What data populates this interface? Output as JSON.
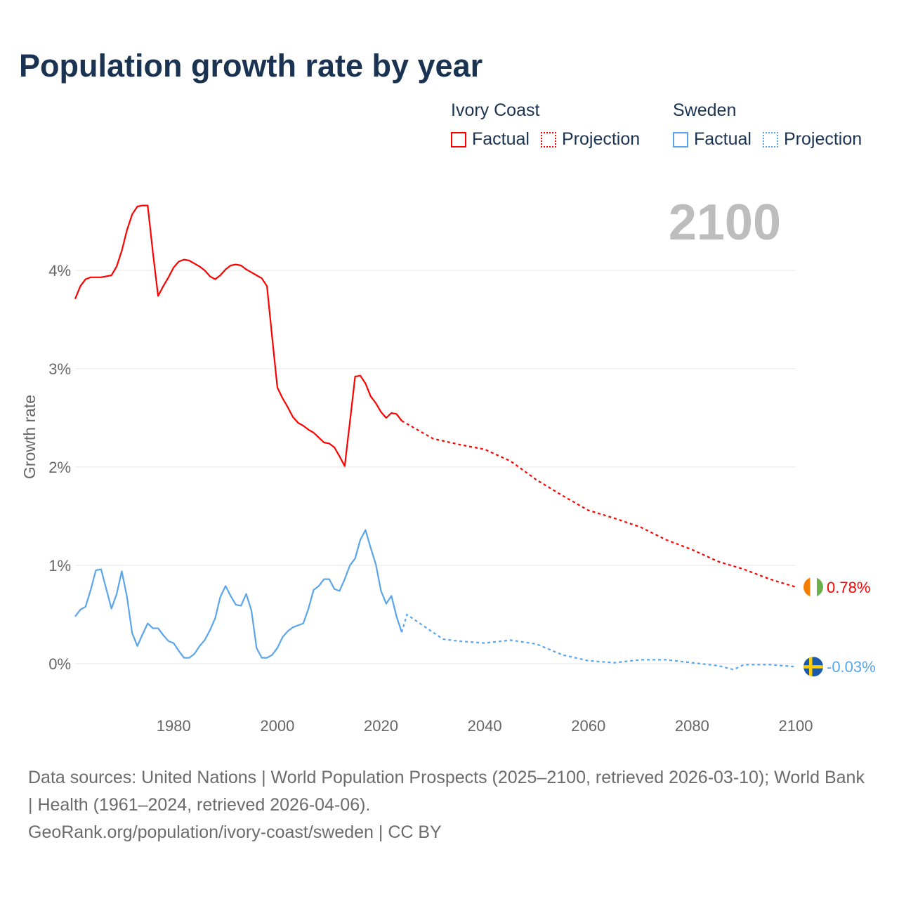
{
  "colors": {
    "ivory_coast": "#ff0000",
    "sweden": "#5aa5ea",
    "grid": "#e6e6e6",
    "axis_text": "#666666",
    "year_watermark": "#bdbdbd"
  },
  "chart_data": {
    "type": "line",
    "title": "Population growth rate by year",
    "ylabel": "Growth rate",
    "xlabel": "",
    "xlim": [
      1961,
      2100
    ],
    "ylim": [
      -0.45,
      5.0
    ],
    "x_ticks": [
      "1980",
      "2000",
      "2020",
      "2040",
      "2060",
      "2080",
      "2100"
    ],
    "x_tick_values": [
      1980,
      2000,
      2020,
      2040,
      2060,
      2080,
      2100
    ],
    "y_ticks": [
      "0%",
      "1%",
      "2%",
      "3%",
      "4%"
    ],
    "y_tick_values": [
      0,
      1,
      2,
      3,
      4
    ],
    "grid": true,
    "legend_position": "top-right",
    "current_year_label": "2100",
    "legend": {
      "groups": [
        {
          "name": "Ivory Coast",
          "factual": "Factual",
          "projection": "Projection"
        },
        {
          "name": "Sweden",
          "factual": "Factual",
          "projection": "Projection"
        }
      ]
    },
    "series": [
      {
        "name": "Ivory Coast",
        "end_label": "0.78%",
        "factual": {
          "x": [
            1961,
            1962,
            1963,
            1964,
            1965,
            1966,
            1967,
            1968,
            1969,
            1970,
            1971,
            1972,
            1973,
            1974,
            1975,
            1976,
            1977,
            1978,
            1979,
            1980,
            1981,
            1982,
            1983,
            1984,
            1985,
            1986,
            1987,
            1988,
            1989,
            1990,
            1991,
            1992,
            1993,
            1994,
            1995,
            1996,
            1997,
            1998,
            1999,
            2000,
            2001,
            2002,
            2003,
            2004,
            2005,
            2006,
            2007,
            2008,
            2009,
            2010,
            2011,
            2012,
            2013,
            2014,
            2015,
            2016,
            2017,
            2018,
            2019,
            2020,
            2021,
            2022,
            2023,
            2024
          ],
          "y": [
            3.71,
            3.84,
            3.91,
            3.93,
            3.93,
            3.93,
            3.94,
            3.95,
            4.04,
            4.2,
            4.41,
            4.57,
            4.65,
            4.66,
            4.66,
            4.18,
            3.74,
            3.84,
            3.93,
            4.03,
            4.09,
            4.11,
            4.1,
            4.07,
            4.04,
            4.0,
            3.94,
            3.91,
            3.95,
            4.01,
            4.05,
            4.06,
            4.05,
            4.01,
            3.98,
            3.95,
            3.92,
            3.84,
            3.32,
            2.81,
            2.7,
            2.61,
            2.51,
            2.45,
            2.42,
            2.38,
            2.35,
            2.3,
            2.25,
            2.24,
            2.2,
            2.11,
            2.01,
            2.46,
            2.92,
            2.93,
            2.85,
            2.72,
            2.65,
            2.56,
            2.5,
            2.55,
            2.54,
            2.47
          ]
        },
        "projection": {
          "x": [
            2024,
            2025,
            2030,
            2035,
            2040,
            2045,
            2050,
            2055,
            2060,
            2065,
            2070,
            2075,
            2080,
            2085,
            2090,
            2095,
            2100
          ],
          "y": [
            2.47,
            2.44,
            2.29,
            2.23,
            2.18,
            2.06,
            1.87,
            1.71,
            1.56,
            1.48,
            1.39,
            1.26,
            1.16,
            1.04,
            0.96,
            0.86,
            0.78
          ]
        }
      },
      {
        "name": "Sweden",
        "end_label": "-0.03%",
        "factual": {
          "x": [
            1961,
            1962,
            1963,
            1964,
            1965,
            1966,
            1967,
            1968,
            1969,
            1970,
            1971,
            1972,
            1973,
            1974,
            1975,
            1976,
            1977,
            1978,
            1979,
            1980,
            1981,
            1982,
            1983,
            1984,
            1985,
            1986,
            1987,
            1988,
            1989,
            1990,
            1991,
            1992,
            1993,
            1994,
            1995,
            1996,
            1997,
            1998,
            1999,
            2000,
            2001,
            2002,
            2003,
            2004,
            2005,
            2006,
            2007,
            2008,
            2009,
            2010,
            2011,
            2012,
            2013,
            2014,
            2015,
            2016,
            2017,
            2018,
            2019,
            2020,
            2021,
            2022,
            2023,
            2024
          ],
          "y": [
            0.48,
            0.55,
            0.58,
            0.75,
            0.95,
            0.96,
            0.76,
            0.56,
            0.71,
            0.94,
            0.68,
            0.31,
            0.18,
            0.3,
            0.41,
            0.36,
            0.36,
            0.29,
            0.23,
            0.21,
            0.13,
            0.06,
            0.06,
            0.1,
            0.18,
            0.24,
            0.34,
            0.46,
            0.68,
            0.79,
            0.69,
            0.6,
            0.59,
            0.71,
            0.54,
            0.16,
            0.06,
            0.06,
            0.09,
            0.16,
            0.27,
            0.33,
            0.37,
            0.39,
            0.41,
            0.56,
            0.75,
            0.79,
            0.86,
            0.86,
            0.76,
            0.74,
            0.86,
            1.0,
            1.07,
            1.26,
            1.36,
            1.18,
            1.01,
            0.74,
            0.61,
            0.69,
            0.48,
            0.32
          ]
        },
        "projection": {
          "x": [
            2024,
            2025,
            2030,
            2032,
            2035,
            2040,
            2045,
            2050,
            2055,
            2060,
            2065,
            2070,
            2075,
            2080,
            2085,
            2088,
            2090,
            2095,
            2100
          ],
          "y": [
            0.32,
            0.5,
            0.32,
            0.25,
            0.23,
            0.21,
            0.24,
            0.2,
            0.09,
            0.03,
            0.01,
            0.04,
            0.04,
            0.01,
            -0.02,
            -0.06,
            -0.01,
            -0.01,
            -0.03
          ]
        }
      }
    ]
  },
  "source": {
    "line1": "Data sources: United Nations | World Population Prospects (2025–2100, retrieved 2026-03-10); World Bank | Health (1961–2024, retrieved 2026-04-06).",
    "line2": "GeoRank.org/population/ivory-coast/sweden | CC BY"
  }
}
